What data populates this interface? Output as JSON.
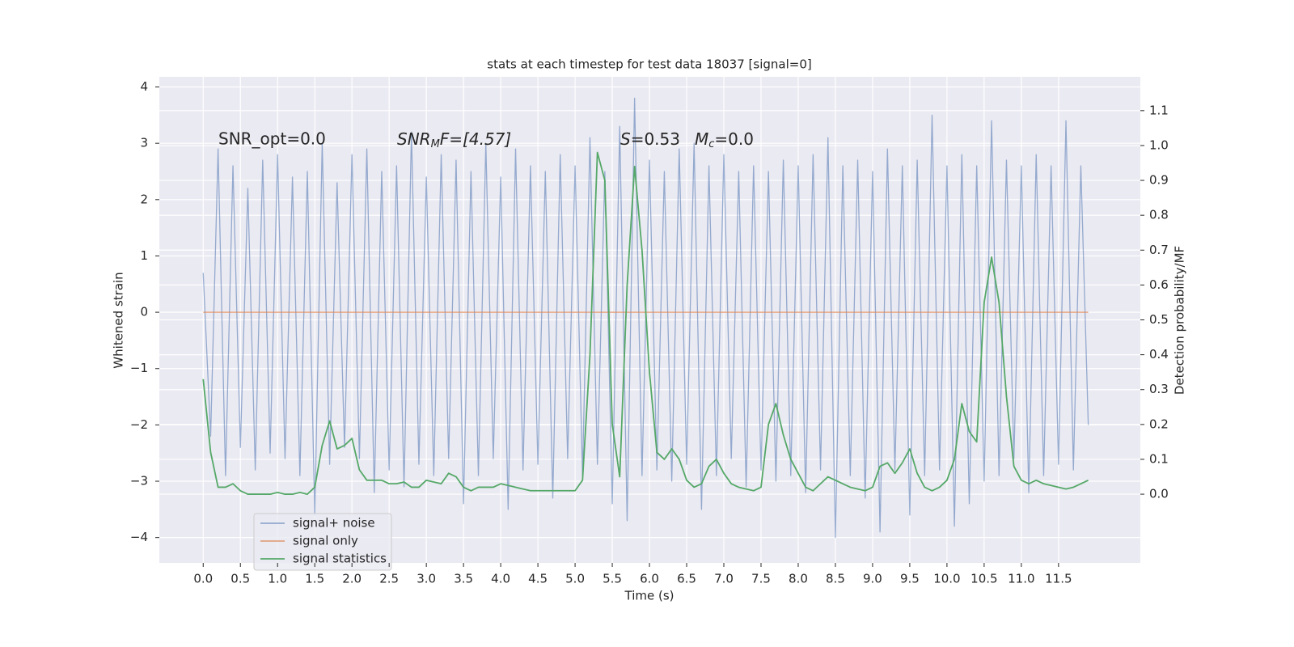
{
  "chart_data": {
    "type": "line",
    "title": "stats at each timestep for test data 18037 [signal=0]",
    "xlabel": "Time (s)",
    "ylabel": "Whitened strain",
    "y2label": "Detection probability/MF",
    "annotations": {
      "snr_opt": "SNR_opt=0.0",
      "snr_mf": [
        "SNR",
        "M",
        "F=[4.57]"
      ],
      "s": [
        "S",
        "=0.53"
      ],
      "mc": [
        "M",
        "c",
        "=0.0"
      ]
    },
    "grid": true,
    "legend": "lower left",
    "x": [
      0.0,
      0.1,
      0.2,
      0.3,
      0.4,
      0.5,
      0.6,
      0.7,
      0.8,
      0.9,
      1.0,
      1.1,
      1.2,
      1.3,
      1.4,
      1.5,
      1.6,
      1.7,
      1.8,
      1.9,
      2.0,
      2.1,
      2.2,
      2.3,
      2.4,
      2.5,
      2.6,
      2.7,
      2.8,
      2.9,
      3.0,
      3.1,
      3.2,
      3.3,
      3.4,
      3.5,
      3.6,
      3.7,
      3.8,
      3.9,
      4.0,
      4.1,
      4.2,
      4.3,
      4.4,
      4.5,
      4.6,
      4.7,
      4.8,
      4.9,
      5.0,
      5.1,
      5.2,
      5.3,
      5.4,
      5.5,
      5.6,
      5.7,
      5.8,
      5.9,
      6.0,
      6.1,
      6.2,
      6.3,
      6.4,
      6.5,
      6.6,
      6.7,
      6.8,
      6.9,
      7.0,
      7.1,
      7.2,
      7.3,
      7.4,
      7.5,
      7.6,
      7.7,
      7.8,
      7.9,
      8.0,
      8.1,
      8.2,
      8.3,
      8.4,
      8.5,
      8.6,
      8.7,
      8.8,
      8.9,
      9.0,
      9.1,
      9.2,
      9.3,
      9.4,
      9.5,
      9.6,
      9.7,
      9.8,
      9.9,
      10.0,
      10.1,
      10.2,
      10.3,
      10.4,
      10.5,
      10.6,
      10.7,
      10.8,
      10.9,
      11.0,
      11.1,
      11.2,
      11.3,
      11.4,
      11.5,
      11.6,
      11.7,
      11.8,
      11.9
    ],
    "series": [
      {
        "name": "signal+ noise",
        "color": "#4c72b0",
        "axis": "y",
        "values": [
          0.7,
          -2.2,
          2.9,
          -2.9,
          2.6,
          -2.4,
          2.2,
          -2.8,
          2.7,
          -2.5,
          2.8,
          -2.6,
          2.4,
          -2.9,
          2.5,
          -3.6,
          3.0,
          -2.7,
          2.3,
          -2.4,
          2.8,
          -2.6,
          2.9,
          -3.2,
          2.5,
          -2.8,
          2.6,
          -3.1,
          3.2,
          -2.7,
          2.4,
          -2.9,
          2.8,
          -2.6,
          2.7,
          -3.4,
          2.5,
          -2.9,
          3.0,
          -2.6,
          2.4,
          -3.5,
          2.9,
          -2.8,
          2.6,
          -2.7,
          2.5,
          -3.3,
          2.8,
          -2.6,
          2.6,
          -2.9,
          3.1,
          -2.7,
          2.5,
          -3.4,
          3.3,
          -3.7,
          3.8,
          -2.9,
          2.7,
          -2.8,
          2.5,
          -3.0,
          2.9,
          -2.7,
          3.0,
          -3.5,
          2.6,
          -2.9,
          2.8,
          -2.6,
          2.5,
          -3.1,
          2.6,
          -2.8,
          2.5,
          -3.0,
          2.7,
          -2.9,
          2.6,
          -3.2,
          2.8,
          -2.8,
          3.1,
          -4.0,
          2.6,
          -2.9,
          2.7,
          -3.3,
          2.5,
          -3.9,
          2.9,
          -2.8,
          2.6,
          -3.6,
          2.7,
          -2.9,
          3.5,
          -2.8,
          2.6,
          -3.8,
          2.8,
          -3.4,
          2.6,
          -3.0,
          3.4,
          -2.9,
          2.7,
          -2.6,
          2.6,
          -3.2,
          2.8,
          -2.9,
          2.6,
          -2.7,
          3.4,
          -2.8,
          2.6,
          -2.0
        ]
      },
      {
        "name": "signal only",
        "color": "#dd8452",
        "axis": "y",
        "values": [
          0,
          0,
          0,
          0,
          0,
          0,
          0,
          0,
          0,
          0,
          0,
          0,
          0,
          0,
          0,
          0,
          0,
          0,
          0,
          0,
          0,
          0,
          0,
          0,
          0,
          0,
          0,
          0,
          0,
          0,
          0,
          0,
          0,
          0,
          0,
          0,
          0,
          0,
          0,
          0,
          0,
          0,
          0,
          0,
          0,
          0,
          0,
          0,
          0,
          0,
          0,
          0,
          0,
          0,
          0,
          0,
          0,
          0,
          0,
          0,
          0,
          0,
          0,
          0,
          0,
          0,
          0,
          0,
          0,
          0,
          0,
          0,
          0,
          0,
          0,
          0,
          0,
          0,
          0,
          0,
          0,
          0,
          0,
          0,
          0,
          0,
          0,
          0,
          0,
          0,
          0,
          0,
          0,
          0,
          0,
          0,
          0,
          0,
          0,
          0,
          0,
          0,
          0,
          0,
          0,
          0,
          0,
          0,
          0,
          0,
          0,
          0,
          0,
          0,
          0,
          0,
          0,
          0,
          0,
          0
        ]
      },
      {
        "name": "signal statistics",
        "color": "#55a868",
        "axis": "y2",
        "values": [
          0.33,
          0.12,
          0.02,
          0.02,
          0.03,
          0.01,
          0.0,
          0.0,
          0.0,
          0.0,
          0.005,
          0.0,
          0.0,
          0.005,
          0.0,
          0.02,
          0.14,
          0.21,
          0.13,
          0.14,
          0.16,
          0.07,
          0.04,
          0.04,
          0.04,
          0.03,
          0.03,
          0.035,
          0.02,
          0.02,
          0.04,
          0.035,
          0.03,
          0.06,
          0.05,
          0.02,
          0.01,
          0.02,
          0.02,
          0.02,
          0.03,
          0.025,
          0.02,
          0.015,
          0.01,
          0.01,
          0.01,
          0.01,
          0.01,
          0.01,
          0.01,
          0.04,
          0.4,
          0.98,
          0.9,
          0.2,
          0.05,
          0.6,
          0.94,
          0.7,
          0.35,
          0.12,
          0.1,
          0.13,
          0.1,
          0.04,
          0.02,
          0.03,
          0.08,
          0.1,
          0.06,
          0.03,
          0.02,
          0.015,
          0.01,
          0.02,
          0.2,
          0.26,
          0.17,
          0.1,
          0.06,
          0.02,
          0.01,
          0.03,
          0.05,
          0.04,
          0.03,
          0.02,
          0.015,
          0.01,
          0.02,
          0.08,
          0.09,
          0.06,
          0.09,
          0.13,
          0.06,
          0.02,
          0.01,
          0.02,
          0.04,
          0.1,
          0.26,
          0.18,
          0.15,
          0.55,
          0.68,
          0.55,
          0.28,
          0.08,
          0.04,
          0.03,
          0.04,
          0.03,
          0.025,
          0.02,
          0.015,
          0.02,
          0.03,
          0.04
        ]
      }
    ],
    "xlim": [
      -0.59,
      12.6
    ],
    "xticks": [
      {
        "value": 0,
        "label": "0.0"
      },
      {
        "value": 0.5,
        "label": "0.5"
      },
      {
        "value": 1,
        "label": "1.0"
      },
      {
        "value": 1.5,
        "label": "1.5"
      },
      {
        "value": 2,
        "label": "2.0"
      },
      {
        "value": 2.5,
        "label": "2.5"
      },
      {
        "value": 3,
        "label": "3.0"
      },
      {
        "value": 3.5,
        "label": "3.5"
      },
      {
        "value": 4,
        "label": "4.0"
      },
      {
        "value": 4.5,
        "label": "4.5"
      },
      {
        "value": 5,
        "label": "5.0"
      },
      {
        "value": 5.5,
        "label": "5.5"
      },
      {
        "value": 6,
        "label": "6.0"
      },
      {
        "value": 6.5,
        "label": "6.5"
      },
      {
        "value": 7,
        "label": "7.0"
      },
      {
        "value": 7.5,
        "label": "7.5"
      },
      {
        "value": 8,
        "label": "8.0"
      },
      {
        "value": 8.5,
        "label": "8.5"
      },
      {
        "value": 9,
        "label": "9.0"
      },
      {
        "value": 9.5,
        "label": "9.5"
      },
      {
        "value": 10,
        "label": "10.0"
      },
      {
        "value": 10.5,
        "label": "10.5"
      },
      {
        "value": 11,
        "label": "11.0"
      },
      {
        "value": 11.5,
        "label": "11.5"
      }
    ],
    "ylim": [
      -4.45,
      4.18
    ],
    "yticks": [
      {
        "value": -4,
        "label": "−4"
      },
      {
        "value": -3,
        "label": "−3"
      },
      {
        "value": -2,
        "label": "−2"
      },
      {
        "value": -1,
        "label": "−1"
      },
      0,
      1,
      2,
      3,
      4
    ],
    "y2lim": [
      -0.197,
      1.197
    ],
    "y2ticks": [
      {
        "value": 0,
        "label": "0.0"
      },
      {
        "value": 0.1,
        "label": "0.1"
      },
      {
        "value": 0.2,
        "label": "0.2"
      },
      {
        "value": 0.3,
        "label": "0.3"
      },
      {
        "value": 0.4,
        "label": "0.4"
      },
      {
        "value": 0.5,
        "label": "0.5"
      },
      {
        "value": 0.6,
        "label": "0.6"
      },
      {
        "value": 0.7,
        "label": "0.7"
      },
      {
        "value": 0.8,
        "label": "0.8"
      },
      {
        "value": 0.9,
        "label": "0.9"
      },
      {
        "value": 1.0,
        "label": "1.0"
      },
      {
        "value": 1.1,
        "label": "1.1"
      }
    ]
  }
}
